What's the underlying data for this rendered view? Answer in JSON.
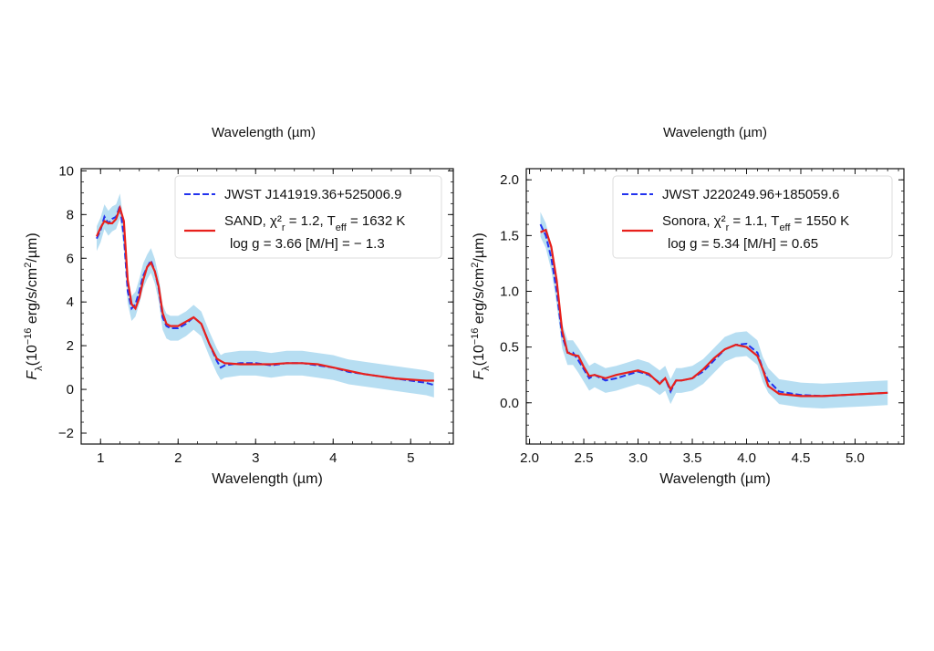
{
  "figure": {
    "top_labels": [
      "Wavelength (µm)",
      "Wavelength (µm)"
    ]
  },
  "chart_data": [
    {
      "type": "line",
      "xlabel": "Wavelength (µm)",
      "ylabel": "F_λ (10^-16 erg/s/cm²/µm)",
      "xlim": [
        0.75,
        5.55
      ],
      "ylim": [
        -2.5,
        10.1
      ],
      "xticks": [
        1,
        2,
        3,
        4,
        5
      ],
      "yticks": [
        -2,
        0,
        2,
        4,
        6,
        8,
        10
      ],
      "legend_position": "top-right",
      "colors": {
        "observed": "#2233ee",
        "model": "#e8201c",
        "error_band": "#9fd3ee"
      },
      "series": [
        {
          "name": "JWST J141919.36+525006.9",
          "style": "dashed",
          "x": [
            0.95,
            1.0,
            1.05,
            1.1,
            1.15,
            1.2,
            1.25,
            1.3,
            1.35,
            1.4,
            1.45,
            1.5,
            1.55,
            1.6,
            1.65,
            1.7,
            1.75,
            1.8,
            1.85,
            1.9,
            2.0,
            2.1,
            2.2,
            2.3,
            2.4,
            2.5,
            2.55,
            2.6,
            2.8,
            3.0,
            3.2,
            3.4,
            3.6,
            3.8,
            4.0,
            4.2,
            4.4,
            4.6,
            4.8,
            5.0,
            5.2,
            5.3
          ],
          "y": [
            6.9,
            7.3,
            7.9,
            7.6,
            7.8,
            7.9,
            8.4,
            7.0,
            4.5,
            3.7,
            3.9,
            4.5,
            5.2,
            5.6,
            5.9,
            5.4,
            4.6,
            3.3,
            2.9,
            2.8,
            2.8,
            3.0,
            3.3,
            3.0,
            2.1,
            1.3,
            1.0,
            1.1,
            1.2,
            1.2,
            1.1,
            1.2,
            1.2,
            1.1,
            1.0,
            0.8,
            0.7,
            0.6,
            0.5,
            0.4,
            0.3,
            0.2
          ]
        },
        {
          "name": "SAND, χ²_r = 1.2, T_eff = 1632 K",
          "name_line2": "log g = 3.66 [M/H] = − 1.3",
          "style": "solid",
          "x": [
            0.95,
            1.0,
            1.05,
            1.1,
            1.15,
            1.2,
            1.25,
            1.3,
            1.35,
            1.4,
            1.45,
            1.5,
            1.55,
            1.6,
            1.65,
            1.7,
            1.75,
            1.8,
            1.85,
            1.9,
            2.0,
            2.1,
            2.2,
            2.3,
            2.4,
            2.5,
            2.55,
            2.6,
            2.8,
            3.0,
            3.2,
            3.4,
            3.6,
            3.8,
            4.0,
            4.2,
            4.4,
            4.6,
            4.8,
            5.0,
            5.2,
            5.3
          ],
          "y": [
            7.0,
            7.4,
            7.7,
            7.6,
            7.6,
            7.8,
            8.3,
            7.7,
            5.0,
            3.9,
            3.7,
            4.2,
            5.0,
            5.6,
            5.8,
            5.4,
            4.7,
            3.5,
            3.0,
            2.9,
            2.9,
            3.1,
            3.3,
            3.0,
            2.1,
            1.4,
            1.3,
            1.2,
            1.15,
            1.15,
            1.15,
            1.2,
            1.2,
            1.15,
            1.0,
            0.85,
            0.7,
            0.6,
            0.5,
            0.45,
            0.4,
            0.4
          ]
        }
      ],
      "legend": [
        {
          "label": "JWST J141919.36+525006.9",
          "style": "dashed"
        },
        {
          "label": "SAND, χ²_r = 1.2, T_eff = 1632 K",
          "label_line2": "log g = 3.66 [M/H] = − 1.3",
          "style": "solid"
        }
      ]
    },
    {
      "type": "line",
      "xlabel": "Wavelength (µm)",
      "ylabel": "F_λ (10^-16 erg/s/cm²/µm)",
      "xlim": [
        1.97,
        5.45
      ],
      "ylim": [
        -0.37,
        2.1
      ],
      "xticks": [
        2.0,
        2.5,
        3.0,
        3.5,
        4.0,
        4.5,
        5.0
      ],
      "yticks": [
        0.0,
        0.5,
        1.0,
        1.5,
        2.0
      ],
      "legend_position": "top-right",
      "colors": {
        "observed": "#2233ee",
        "model": "#e8201c",
        "error_band": "#9fd3ee"
      },
      "series": [
        {
          "name": "JWST J220249.96+185059.6",
          "style": "dashed",
          "x": [
            2.1,
            2.15,
            2.2,
            2.25,
            2.3,
            2.35,
            2.4,
            2.45,
            2.5,
            2.55,
            2.6,
            2.7,
            2.8,
            2.9,
            3.0,
            3.1,
            3.2,
            3.25,
            3.3,
            3.35,
            3.4,
            3.5,
            3.6,
            3.7,
            3.8,
            3.9,
            4.0,
            4.1,
            4.15,
            4.2,
            4.3,
            4.5,
            4.7,
            4.9,
            5.1,
            5.3
          ],
          "y": [
            1.6,
            1.5,
            1.3,
            1.0,
            0.6,
            0.45,
            0.45,
            0.38,
            0.3,
            0.22,
            0.25,
            0.2,
            0.22,
            0.25,
            0.28,
            0.25,
            0.18,
            0.22,
            0.1,
            0.2,
            0.2,
            0.22,
            0.28,
            0.38,
            0.48,
            0.52,
            0.53,
            0.45,
            0.3,
            0.2,
            0.1,
            0.07,
            0.06,
            0.07,
            0.08,
            0.09
          ]
        },
        {
          "name": "Sonora, χ²_r = 1.1, T_eff = 1550 K",
          "name_line2": "log g = 5.34 [M/H] = 0.65",
          "style": "solid",
          "x": [
            2.1,
            2.15,
            2.2,
            2.25,
            2.3,
            2.35,
            2.4,
            2.45,
            2.5,
            2.55,
            2.6,
            2.7,
            2.8,
            2.9,
            3.0,
            3.1,
            3.2,
            3.25,
            3.3,
            3.35,
            3.4,
            3.5,
            3.6,
            3.7,
            3.8,
            3.9,
            4.0,
            4.1,
            4.15,
            4.2,
            4.3,
            4.5,
            4.7,
            4.9,
            5.1,
            5.3
          ],
          "y": [
            1.53,
            1.55,
            1.4,
            1.1,
            0.65,
            0.45,
            0.43,
            0.42,
            0.32,
            0.24,
            0.25,
            0.22,
            0.25,
            0.27,
            0.29,
            0.26,
            0.17,
            0.22,
            0.12,
            0.2,
            0.2,
            0.22,
            0.3,
            0.4,
            0.48,
            0.52,
            0.5,
            0.42,
            0.3,
            0.15,
            0.08,
            0.06,
            0.06,
            0.07,
            0.08,
            0.09
          ]
        }
      ],
      "legend": [
        {
          "label": "JWST J220249.96+185059.6",
          "style": "dashed"
        },
        {
          "label": "Sonora, χ²_r = 1.1, T_eff = 1550 K",
          "label_line2": "log g = 5.34 [M/H] = 0.65",
          "style": "solid"
        }
      ]
    }
  ]
}
